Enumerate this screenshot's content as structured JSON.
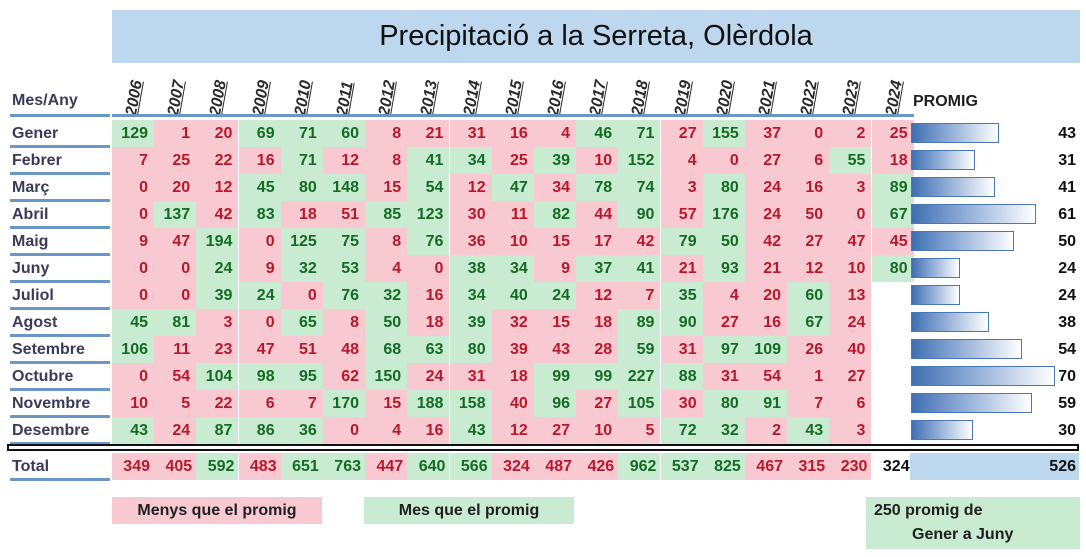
{
  "chart_data": {
    "type": "table",
    "title": "Precipitació a la Serreta, Olèrdola",
    "corner_label": "Mes/Any",
    "years": [
      "2006",
      "2007",
      "2008",
      "2009",
      "2010",
      "2011",
      "2012",
      "2013",
      "2014",
      "2015",
      "2016",
      "2017",
      "2018",
      "2019",
      "2020",
      "2021",
      "2022",
      "2023",
      "2024"
    ],
    "average_label": "PROMIG",
    "rows": [
      {
        "month": "Gener",
        "values": [
          129,
          1,
          20,
          69,
          71,
          60,
          8,
          21,
          31,
          16,
          4,
          46,
          71,
          27,
          155,
          37,
          0,
          2,
          25
        ],
        "average": 43
      },
      {
        "month": "Febrer",
        "values": [
          7,
          25,
          22,
          16,
          71,
          12,
          8,
          41,
          34,
          25,
          39,
          10,
          152,
          4,
          0,
          27,
          6,
          55,
          18
        ],
        "average": 31
      },
      {
        "month": "Març",
        "values": [
          0,
          20,
          12,
          45,
          80,
          148,
          15,
          54,
          12,
          47,
          34,
          78,
          74,
          3,
          80,
          24,
          16,
          3,
          89
        ],
        "average": 41
      },
      {
        "month": "Abril",
        "values": [
          0,
          137,
          42,
          83,
          18,
          51,
          85,
          123,
          30,
          11,
          82,
          44,
          90,
          57,
          176,
          24,
          50,
          0,
          67
        ],
        "average": 61
      },
      {
        "month": "Maig",
        "values": [
          9,
          47,
          194,
          0,
          125,
          75,
          8,
          76,
          36,
          10,
          15,
          17,
          42,
          79,
          50,
          42,
          27,
          47,
          45
        ],
        "average": 50
      },
      {
        "month": "Juny",
        "values": [
          0,
          0,
          24,
          9,
          32,
          53,
          4,
          0,
          38,
          34,
          9,
          37,
          41,
          21,
          93,
          21,
          12,
          10,
          80
        ],
        "average": 24
      },
      {
        "month": "Juliol",
        "values": [
          0,
          0,
          39,
          24,
          0,
          76,
          32,
          16,
          34,
          40,
          24,
          12,
          7,
          35,
          4,
          20,
          60,
          13,
          null
        ],
        "average": 24
      },
      {
        "month": "Agost",
        "values": [
          45,
          81,
          3,
          0,
          65,
          8,
          50,
          18,
          39,
          32,
          15,
          18,
          89,
          90,
          27,
          16,
          67,
          24,
          null
        ],
        "average": 38
      },
      {
        "month": "Setembre",
        "values": [
          106,
          11,
          23,
          47,
          51,
          48,
          68,
          63,
          80,
          39,
          43,
          28,
          59,
          31,
          97,
          109,
          26,
          40,
          null
        ],
        "average": 54
      },
      {
        "month": "Octubre",
        "values": [
          0,
          54,
          104,
          98,
          95,
          62,
          150,
          24,
          31,
          18,
          99,
          99,
          227,
          88,
          31,
          54,
          1,
          27,
          null
        ],
        "average": 70
      },
      {
        "month": "Novembre",
        "values": [
          10,
          5,
          22,
          6,
          7,
          170,
          15,
          188,
          158,
          40,
          96,
          27,
          105,
          30,
          80,
          91,
          7,
          6,
          null
        ],
        "average": 59
      },
      {
        "month": "Desembre",
        "values": [
          43,
          24,
          87,
          86,
          36,
          0,
          4,
          16,
          43,
          12,
          27,
          10,
          5,
          72,
          32,
          2,
          43,
          3,
          null
        ],
        "average": 30
      }
    ],
    "total_label": "Total",
    "totals": [
      349,
      405,
      592,
      483,
      651,
      763,
      447,
      640,
      566,
      324,
      487,
      426,
      962,
      537,
      825,
      467,
      315,
      230,
      324
    ],
    "total_average": 526,
    "legend": {
      "below": "Menys que el promig",
      "above": "Mes que el promig",
      "note_line1": "250 promig de",
      "note_line2": "Gener a Juny"
    },
    "colors": {
      "below_bg": "#f8c9d1",
      "below_text": "#b8182c",
      "above_bg": "#c9ebd1",
      "above_text": "#146b23",
      "header_bg": "#bdd7ee",
      "bar": "#3f6fb2"
    }
  }
}
